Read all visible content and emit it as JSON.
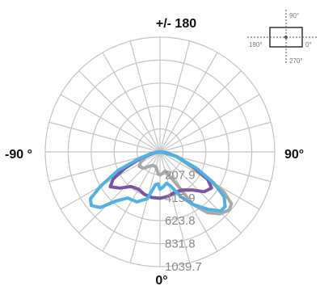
{
  "chart_data": {
    "type": "polar-line",
    "title": "",
    "angle_labels": {
      "top": "+/- 180",
      "left": "-90 °",
      "right": "90°",
      "bottom": "0°"
    },
    "radial_range": [
      0,
      1039.7
    ],
    "radial_ticks": [
      207.9,
      415.9,
      623.8,
      831.8,
      1039.7
    ],
    "radial_tick_labels": [
      "207.9",
      "415.9",
      "623.8",
      "831.8",
      "1039.7"
    ],
    "angular_grid_step_deg": 15,
    "grid": true,
    "legend": "none",
    "series": [
      {
        "color": "#a9a9a9",
        "points": [
          {
            "angle": -90,
            "r": 0
          },
          {
            "angle": -80,
            "r": 70
          },
          {
            "angle": -70,
            "r": 140
          },
          {
            "angle": -62,
            "r": 200
          },
          {
            "angle": -55,
            "r": 230
          },
          {
            "angle": -45,
            "r": 210
          },
          {
            "angle": -30,
            "r": 140
          },
          {
            "angle": -15,
            "r": 140
          },
          {
            "angle": -5,
            "r": 200
          },
          {
            "angle": 0,
            "r": 210
          },
          {
            "angle": 5,
            "r": 200
          },
          {
            "angle": 15,
            "r": 180
          },
          {
            "angle": 25,
            "r": 280
          },
          {
            "angle": 32,
            "r": 560
          },
          {
            "angle": 38,
            "r": 700
          },
          {
            "angle": 44,
            "r": 780
          },
          {
            "angle": 50,
            "r": 820
          },
          {
            "angle": 54,
            "r": 800
          },
          {
            "angle": 58,
            "r": 680
          },
          {
            "angle": 65,
            "r": 300
          },
          {
            "angle": 75,
            "r": 150
          },
          {
            "angle": 90,
            "r": 0
          }
        ]
      },
      {
        "color": "#7a55a4",
        "points": [
          {
            "angle": -90,
            "r": 0
          },
          {
            "angle": -82,
            "r": 50
          },
          {
            "angle": -72,
            "r": 180
          },
          {
            "angle": -65,
            "r": 350
          },
          {
            "angle": -60,
            "r": 490
          },
          {
            "angle": -55,
            "r": 550
          },
          {
            "angle": -48,
            "r": 490
          },
          {
            "angle": -40,
            "r": 410
          },
          {
            "angle": -30,
            "r": 390
          },
          {
            "angle": -20,
            "r": 410
          },
          {
            "angle": -10,
            "r": 420
          },
          {
            "angle": 0,
            "r": 420
          },
          {
            "angle": 10,
            "r": 410
          },
          {
            "angle": 20,
            "r": 390
          },
          {
            "angle": 30,
            "r": 400
          },
          {
            "angle": 40,
            "r": 450
          },
          {
            "angle": 48,
            "r": 540
          },
          {
            "angle": 55,
            "r": 570
          },
          {
            "angle": 60,
            "r": 500
          },
          {
            "angle": 66,
            "r": 330
          },
          {
            "angle": 74,
            "r": 160
          },
          {
            "angle": 82,
            "r": 60
          },
          {
            "angle": 90,
            "r": 0
          }
        ]
      },
      {
        "color": "#4fb2e3",
        "points": [
          {
            "angle": -90,
            "r": 0
          },
          {
            "angle": -80,
            "r": 80
          },
          {
            "angle": -72,
            "r": 200
          },
          {
            "angle": -66,
            "r": 420
          },
          {
            "angle": -60,
            "r": 620
          },
          {
            "angle": -56,
            "r": 760
          },
          {
            "angle": -52,
            "r": 790
          },
          {
            "angle": -47,
            "r": 740
          },
          {
            "angle": -42,
            "r": 600
          },
          {
            "angle": -35,
            "r": 510
          },
          {
            "angle": -25,
            "r": 500
          },
          {
            "angle": -15,
            "r": 440
          },
          {
            "angle": -8,
            "r": 300
          },
          {
            "angle": -3,
            "r": 290
          },
          {
            "angle": 0,
            "r": 340
          },
          {
            "angle": 5,
            "r": 320
          },
          {
            "angle": 12,
            "r": 290
          },
          {
            "angle": 18,
            "r": 330
          },
          {
            "angle": 25,
            "r": 450
          },
          {
            "angle": 32,
            "r": 560
          },
          {
            "angle": 40,
            "r": 680
          },
          {
            "angle": 46,
            "r": 770
          },
          {
            "angle": 50,
            "r": 770
          },
          {
            "angle": 55,
            "r": 710
          },
          {
            "angle": 60,
            "r": 560
          },
          {
            "angle": 66,
            "r": 360
          },
          {
            "angle": 74,
            "r": 150
          },
          {
            "angle": 82,
            "r": 40
          },
          {
            "angle": 90,
            "r": 0
          }
        ]
      }
    ],
    "orientation_inset": {
      "labels": {
        "top": "90°",
        "left": "180°",
        "right": "0°",
        "bottom": "270°"
      }
    }
  }
}
